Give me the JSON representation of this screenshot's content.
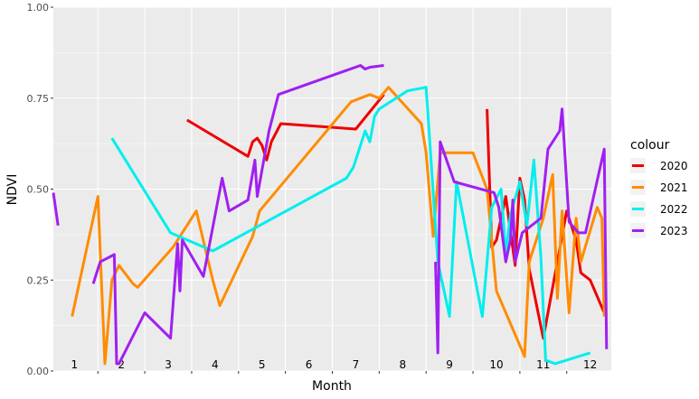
{
  "chart_data": {
    "type": "line",
    "xlabel": "Month",
    "ylabel": "NDVI",
    "xlim": [
      0.55,
      12.45
    ],
    "ylim": [
      0,
      1
    ],
    "yticks": [
      "0.00",
      "0.25",
      "0.50",
      "0.75",
      "1.00"
    ],
    "ytick_values": [
      0,
      0.25,
      0.5,
      0.75,
      1.0
    ],
    "month_labels": [
      "1",
      "2",
      "3",
      "4",
      "5",
      "6",
      "7",
      "8",
      "9",
      "10",
      "11",
      "12"
    ],
    "grid": true,
    "legend_title": "colour",
    "legend_position": "right",
    "series": [
      {
        "name": "2020",
        "color": "#ee0000",
        "x": [
          3.4,
          4.7,
          4.8,
          4.9,
          5.0,
          5.1,
          5.2,
          5.4,
          7.0,
          7.6,
          null,
          9.8,
          9.9,
          10.0,
          10.2,
          10.4,
          10.5,
          10.6,
          10.7,
          11.0,
          11.5,
          11.7,
          11.8,
          12.0,
          12.3
        ],
        "y": [
          0.69,
          0.59,
          0.63,
          0.64,
          0.62,
          0.58,
          0.63,
          0.68,
          0.665,
          0.76,
          null,
          0.72,
          0.34,
          0.36,
          0.48,
          0.29,
          0.53,
          0.47,
          0.28,
          0.09,
          0.44,
          0.36,
          0.27,
          0.25,
          0.16
        ]
      },
      {
        "name": "2021",
        "color": "#ff8c00",
        "x": [
          0.95,
          1.5,
          1.65,
          1.8,
          1.95,
          2.25,
          2.35,
          3.1,
          3.6,
          3.95,
          4.1,
          4.8,
          4.95,
          6.9,
          7.3,
          7.5,
          7.7,
          8.4,
          8.5,
          8.65,
          8.8,
          9.5,
          9.8,
          10.0,
          10.6,
          10.7,
          11.0,
          11.2,
          11.3,
          11.4,
          11.55,
          11.7,
          11.8,
          12.15,
          12.25,
          12.3
        ],
        "y": [
          0.15,
          0.48,
          0.02,
          0.25,
          0.29,
          0.24,
          0.23,
          0.34,
          0.44,
          0.25,
          0.18,
          0.37,
          0.44,
          0.74,
          0.76,
          0.75,
          0.78,
          0.68,
          0.6,
          0.37,
          0.6,
          0.6,
          0.5,
          0.22,
          0.04,
          0.3,
          0.42,
          0.54,
          0.2,
          0.44,
          0.16,
          0.42,
          0.3,
          0.45,
          0.42,
          0.15
        ]
      },
      {
        "name": "2022",
        "color": "#00eeee",
        "x": [
          1.8,
          3.05,
          3.95,
          6.8,
          6.95,
          7.2,
          7.3,
          7.4,
          7.5,
          8.1,
          8.5,
          8.6,
          8.75,
          9.0,
          9.15,
          9.7,
          9.9,
          10.1,
          10.2,
          10.3,
          10.5,
          10.65,
          10.8,
          10.95,
          11.05,
          11.25,
          12.0
        ],
        "y": [
          0.64,
          0.38,
          0.33,
          0.53,
          0.56,
          0.66,
          0.63,
          0.7,
          0.72,
          0.77,
          0.78,
          0.59,
          0.3,
          0.15,
          0.52,
          0.15,
          0.45,
          0.5,
          0.32,
          0.43,
          0.52,
          0.4,
          0.58,
          0.31,
          0.03,
          0.02,
          0.05
        ]
      },
      {
        "name": "2023",
        "color": "#a020f0",
        "x": [
          0.55,
          0.65,
          null,
          1.4,
          1.55,
          1.85,
          1.9,
          1.95,
          2.5,
          3.05,
          3.2,
          3.25,
          3.3,
          3.75,
          4.15,
          4.3,
          4.7,
          4.85,
          4.9,
          5.15,
          5.35,
          7.1,
          7.2,
          7.3,
          7.6,
          null,
          8.7,
          8.75,
          8.8,
          9.1,
          9.95,
          10.05,
          10.2,
          10.3,
          10.35,
          10.4,
          10.55,
          10.95,
          11.1,
          11.35,
          11.4,
          11.55,
          11.75,
          11.9,
          12.3,
          12.35
        ],
        "y": [
          0.49,
          0.4,
          null,
          0.24,
          0.3,
          0.32,
          0.02,
          0.02,
          0.16,
          0.09,
          0.35,
          0.22,
          0.36,
          0.26,
          0.53,
          0.44,
          0.47,
          0.58,
          0.48,
          0.66,
          0.76,
          0.84,
          0.83,
          0.835,
          0.84,
          null,
          0.3,
          0.05,
          0.63,
          0.52,
          0.49,
          0.45,
          0.3,
          0.36,
          0.47,
          0.3,
          0.38,
          0.42,
          0.61,
          0.66,
          0.72,
          0.41,
          0.38,
          0.38,
          0.61,
          0.06
        ]
      }
    ]
  }
}
